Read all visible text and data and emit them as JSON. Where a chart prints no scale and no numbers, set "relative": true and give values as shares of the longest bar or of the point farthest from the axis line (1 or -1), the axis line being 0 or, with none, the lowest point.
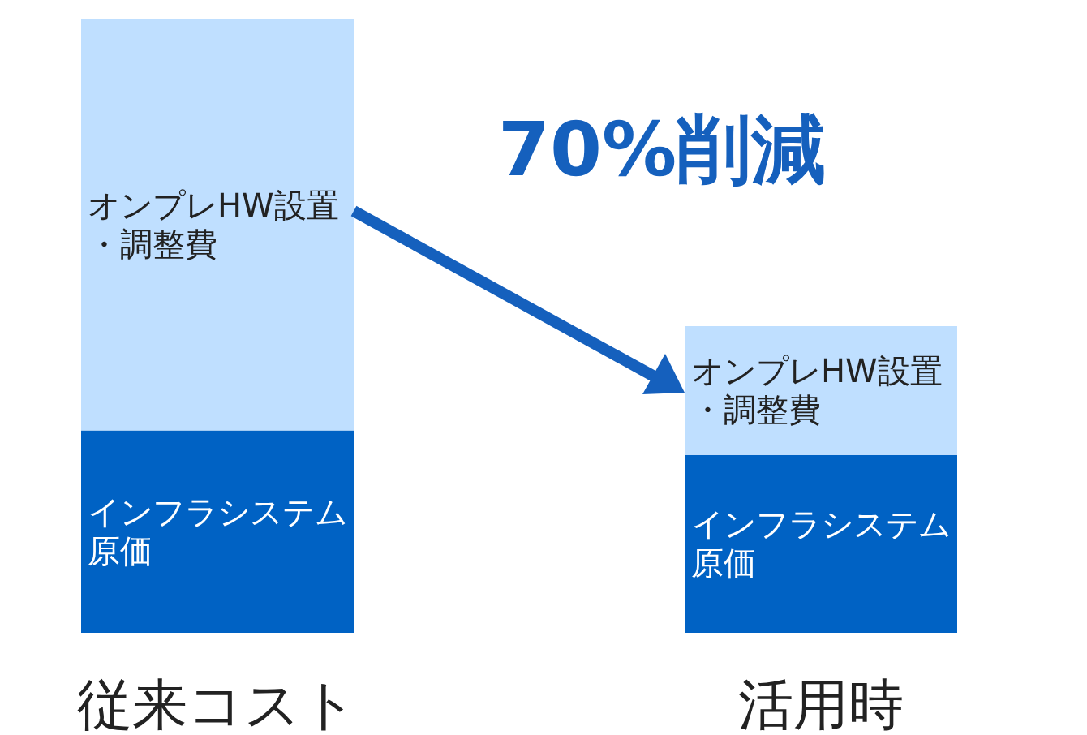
{
  "chart_data": {
    "type": "bar",
    "stacked": true,
    "relative": true,
    "categories": [
      "従来コスト",
      "活用時"
    ],
    "series": [
      {
        "name": "インフラシステム原価",
        "color": "#0062c4",
        "values": [
          0.33,
          0.29
        ]
      },
      {
        "name": "オンプレHW設置・調整費",
        "color": "#bfdfff",
        "values": [
          0.67,
          0.21
        ]
      }
    ],
    "annotations": [
      "70%削減"
    ]
  }
}
